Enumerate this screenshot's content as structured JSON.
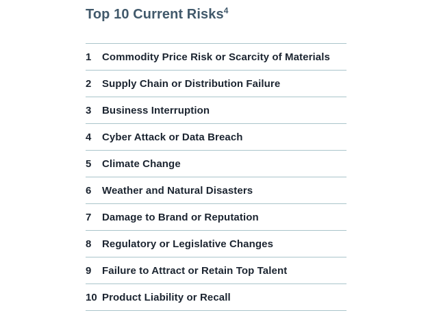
{
  "title": {
    "text": "Top 10 Current Risks",
    "footnote_marker": "4"
  },
  "colors": {
    "divider": "#a9c4ca",
    "title": "#41596b",
    "row_text": "#1b2430",
    "background": "#ffffff"
  },
  "risks": [
    {
      "rank": "1",
      "label": "Commodity Price Risk or Scarcity of Materials"
    },
    {
      "rank": "2",
      "label": "Supply Chain or Distribution Failure"
    },
    {
      "rank": "3",
      "label": "Business Interruption"
    },
    {
      "rank": "4",
      "label": "Cyber Attack or Data Breach"
    },
    {
      "rank": "5",
      "label": "Climate Change"
    },
    {
      "rank": "6",
      "label": "Weather and Natural Disasters"
    },
    {
      "rank": "7",
      "label": "Damage to Brand or Reputation"
    },
    {
      "rank": "8",
      "label": "Regulatory or Legislative Changes"
    },
    {
      "rank": "9",
      "label": "Failure to Attract or Retain Top Talent"
    },
    {
      "rank": "10",
      "label": "Product Liability or Recall"
    }
  ]
}
